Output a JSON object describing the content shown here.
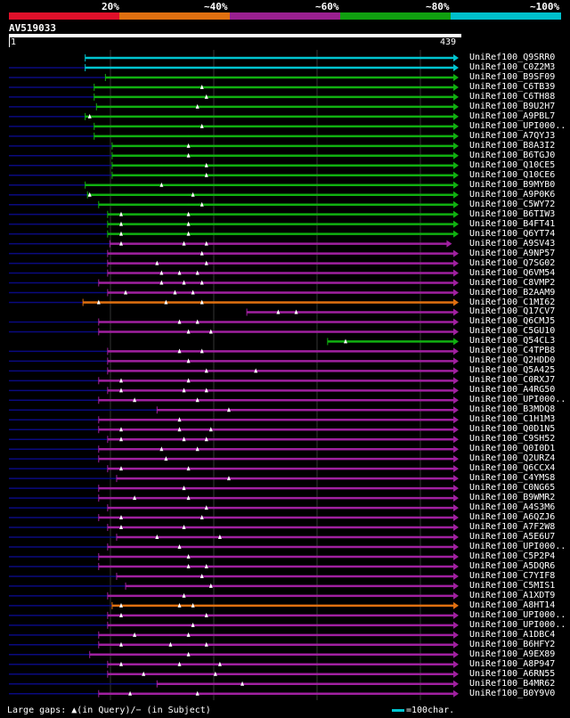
{
  "legend": {
    "labels": [
      "20%",
      "~40%",
      "~60%",
      "~80%",
      "~100%"
    ],
    "colors": [
      "#e0102a",
      "#e07010",
      "#9a2090",
      "#10a010",
      "#00c0cc"
    ]
  },
  "query": {
    "name": "AV519033",
    "start": "1",
    "end": "439"
  },
  "colors": {
    "cyan": "#00c4d0",
    "green": "#10b010",
    "purple": "#a020a0",
    "orange": "#e07010",
    "navy": "#0a0a80",
    "grid": "#333333",
    "marker": "#ffffff"
  },
  "hits": [
    {
      "name": "UniRef100_Q9SRR0",
      "color": "cyan",
      "start": 0.17,
      "end": 1.0,
      "leftExt": false,
      "markers": []
    },
    {
      "name": "UniRef100_C0Z2M3",
      "color": "cyan",
      "start": 0.17,
      "end": 1.0,
      "leftExt": true,
      "markers": []
    },
    {
      "name": "UniRef100_B9SF09",
      "color": "green",
      "start": 0.215,
      "end": 1.0,
      "leftExt": true,
      "markers": []
    },
    {
      "name": "UniRef100_C6TB39",
      "color": "green",
      "start": 0.19,
      "end": 1.0,
      "leftExt": true,
      "markers": [
        0.43
      ]
    },
    {
      "name": "UniRef100_C6TH88",
      "color": "green",
      "start": 0.19,
      "end": 1.0,
      "leftExt": true,
      "markers": [
        0.44
      ]
    },
    {
      "name": "UniRef100_B9U2H7",
      "color": "green",
      "start": 0.195,
      "end": 1.0,
      "leftExt": true,
      "markers": [
        0.42
      ]
    },
    {
      "name": "UniRef100_A9PBL7",
      "color": "green",
      "start": 0.17,
      "end": 1.0,
      "leftExt": true,
      "markers": [
        0.18
      ]
    },
    {
      "name": "UniRef100_UPI000..",
      "color": "green",
      "start": 0.19,
      "end": 1.0,
      "leftExt": true,
      "markers": [
        0.43
      ]
    },
    {
      "name": "UniRef100_A7QYJ3",
      "color": "green",
      "start": 0.19,
      "end": 1.0,
      "leftExt": true,
      "markers": []
    },
    {
      "name": "UniRef100_B8A3I2",
      "color": "green",
      "start": 0.23,
      "end": 1.0,
      "leftExt": true,
      "markers": [
        0.4
      ]
    },
    {
      "name": "UniRef100_B6TGJ0",
      "color": "green",
      "start": 0.23,
      "end": 1.0,
      "leftExt": true,
      "markers": [
        0.4
      ]
    },
    {
      "name": "UniRef100_Q10CE5",
      "color": "green",
      "start": 0.23,
      "end": 1.0,
      "leftExt": true,
      "markers": [
        0.44
      ]
    },
    {
      "name": "UniRef100_Q10CE6",
      "color": "green",
      "start": 0.23,
      "end": 1.0,
      "leftExt": true,
      "markers": [
        0.44
      ]
    },
    {
      "name": "UniRef100_B9MYB0",
      "color": "green",
      "start": 0.17,
      "end": 1.0,
      "leftExt": true,
      "markers": [
        0.34
      ]
    },
    {
      "name": "UniRef100_A9P0K6",
      "color": "green",
      "start": 0.175,
      "end": 1.0,
      "leftExt": true,
      "markers": [
        0.18,
        0.41
      ]
    },
    {
      "name": "UniRef100_C5WY72",
      "color": "green",
      "start": 0.2,
      "end": 1.0,
      "leftExt": true,
      "markers": [
        0.43
      ]
    },
    {
      "name": "UniRef100_B6TIW3",
      "color": "green",
      "start": 0.22,
      "end": 1.0,
      "leftExt": true,
      "markers": [
        0.25,
        0.4
      ]
    },
    {
      "name": "UniRef100_B4FT41",
      "color": "green",
      "start": 0.22,
      "end": 1.0,
      "leftExt": true,
      "markers": [
        0.25,
        0.4
      ]
    },
    {
      "name": "UniRef100_Q6YT74",
      "color": "green",
      "start": 0.22,
      "end": 1.0,
      "leftExt": true,
      "markers": [
        0.25,
        0.4
      ]
    },
    {
      "name": "UniRef100_A9SV43",
      "color": "purple",
      "start": 0.225,
      "end": 0.985,
      "leftExt": true,
      "markers": [
        0.25,
        0.39,
        0.44
      ]
    },
    {
      "name": "UniRef100_A9NP57",
      "color": "purple",
      "start": 0.22,
      "end": 1.0,
      "leftExt": true,
      "markers": [
        0.43
      ]
    },
    {
      "name": "UniRef100_Q7SG02",
      "color": "purple",
      "start": 0.22,
      "end": 1.0,
      "leftExt": true,
      "markers": [
        0.33,
        0.44
      ]
    },
    {
      "name": "UniRef100_Q6VM54",
      "color": "purple",
      "start": 0.22,
      "end": 1.0,
      "leftExt": true,
      "markers": [
        0.34,
        0.38,
        0.42
      ]
    },
    {
      "name": "UniRef100_C8VMP2",
      "color": "purple",
      "start": 0.2,
      "end": 1.0,
      "leftExt": true,
      "markers": [
        0.34,
        0.39,
        0.43
      ]
    },
    {
      "name": "UniRef100_B2AAM9",
      "color": "purple",
      "start": 0.22,
      "end": 1.0,
      "leftExt": true,
      "markers": [
        0.26,
        0.37,
        0.41
      ]
    },
    {
      "name": "UniRef100_C1MI62",
      "color": "orange",
      "start": 0.165,
      "end": 1.0,
      "leftExt": true,
      "markers": [
        0.2,
        0.35,
        0.43
      ]
    },
    {
      "name": "UniRef100_Q17CV7",
      "color": "purple",
      "start": 0.53,
      "end": 1.0,
      "leftExt": false,
      "markers": [
        0.6,
        0.64
      ]
    },
    {
      "name": "UniRef100_Q6CMJ5",
      "color": "purple",
      "start": 0.2,
      "end": 1.0,
      "leftExt": true,
      "markers": [
        0.38,
        0.42
      ]
    },
    {
      "name": "UniRef100_C5GU10",
      "color": "purple",
      "start": 0.2,
      "end": 1.0,
      "leftExt": true,
      "markers": [
        0.4,
        0.45
      ]
    },
    {
      "name": "UniRef100_Q54CL3",
      "color": "green",
      "start": 0.71,
      "end": 1.0,
      "leftExt": false,
      "markers": [
        0.75
      ]
    },
    {
      "name": "UniRef100_C4TPB8",
      "color": "purple",
      "start": 0.22,
      "end": 1.0,
      "leftExt": true,
      "markers": [
        0.38,
        0.43
      ]
    },
    {
      "name": "UniRef100_Q2HDD0",
      "color": "purple",
      "start": 0.22,
      "end": 1.0,
      "leftExt": true,
      "markers": [
        0.4
      ]
    },
    {
      "name": "UniRef100_Q5A425",
      "color": "purple",
      "start": 0.22,
      "end": 1.0,
      "leftExt": true,
      "markers": [
        0.44,
        0.55
      ]
    },
    {
      "name": "UniRef100_C0RXJ7",
      "color": "purple",
      "start": 0.2,
      "end": 1.0,
      "leftExt": true,
      "markers": [
        0.25,
        0.4
      ]
    },
    {
      "name": "UniRef100_A4RG50",
      "color": "purple",
      "start": 0.22,
      "end": 1.0,
      "leftExt": true,
      "markers": [
        0.25,
        0.39,
        0.44
      ]
    },
    {
      "name": "UniRef100_UPI000..",
      "color": "purple",
      "start": 0.2,
      "end": 1.0,
      "leftExt": true,
      "markers": [
        0.28,
        0.42
      ]
    },
    {
      "name": "UniRef100_B3MDQ8",
      "color": "purple",
      "start": 0.33,
      "end": 1.0,
      "leftExt": true,
      "markers": [
        0.49
      ]
    },
    {
      "name": "UniRef100_C1H1M3",
      "color": "purple",
      "start": 0.2,
      "end": 1.0,
      "leftExt": true,
      "markers": [
        0.38
      ]
    },
    {
      "name": "UniRef100_Q0D1N5",
      "color": "purple",
      "start": 0.2,
      "end": 1.0,
      "leftExt": true,
      "markers": [
        0.25,
        0.38,
        0.45
      ]
    },
    {
      "name": "UniRef100_C9SH52",
      "color": "purple",
      "start": 0.22,
      "end": 1.0,
      "leftExt": true,
      "markers": [
        0.25,
        0.39,
        0.44
      ]
    },
    {
      "name": "UniRef100_Q0I0D1",
      "color": "purple",
      "start": 0.2,
      "end": 1.0,
      "leftExt": true,
      "markers": [
        0.34,
        0.42
      ]
    },
    {
      "name": "UniRef100_Q2URZ4",
      "color": "purple",
      "start": 0.2,
      "end": 1.0,
      "leftExt": true,
      "markers": [
        0.35
      ]
    },
    {
      "name": "UniRef100_Q6CCX4",
      "color": "purple",
      "start": 0.22,
      "end": 1.0,
      "leftExt": true,
      "markers": [
        0.25,
        0.4
      ]
    },
    {
      "name": "UniRef100_C4YMS8",
      "color": "purple",
      "start": 0.24,
      "end": 1.0,
      "leftExt": true,
      "markers": [
        0.49
      ]
    },
    {
      "name": "UniRef100_C0NG65",
      "color": "purple",
      "start": 0.2,
      "end": 1.0,
      "leftExt": true,
      "markers": [
        0.39
      ]
    },
    {
      "name": "UniRef100_B9WMR2",
      "color": "purple",
      "start": 0.2,
      "end": 1.0,
      "leftExt": true,
      "markers": [
        0.28,
        0.4
      ]
    },
    {
      "name": "UniRef100_A4S3M6",
      "color": "purple",
      "start": 0.22,
      "end": 1.0,
      "leftExt": true,
      "markers": [
        0.44
      ]
    },
    {
      "name": "UniRef100_A6QZJ6",
      "color": "purple",
      "start": 0.2,
      "end": 1.0,
      "leftExt": true,
      "markers": [
        0.25,
        0.43
      ]
    },
    {
      "name": "UniRef100_A7F2W8",
      "color": "purple",
      "start": 0.22,
      "end": 1.0,
      "leftExt": true,
      "markers": [
        0.25,
        0.39
      ]
    },
    {
      "name": "UniRef100_A5E6U7",
      "color": "purple",
      "start": 0.24,
      "end": 1.0,
      "leftExt": true,
      "markers": [
        0.33,
        0.47
      ]
    },
    {
      "name": "UniRef100_UPI000..",
      "color": "purple",
      "start": 0.22,
      "end": 1.0,
      "leftExt": true,
      "markers": [
        0.38
      ]
    },
    {
      "name": "UniRef100_C5P2P4",
      "color": "purple",
      "start": 0.2,
      "end": 1.0,
      "leftExt": true,
      "markers": [
        0.4
      ]
    },
    {
      "name": "UniRef100_A5DQR6",
      "color": "purple",
      "start": 0.2,
      "end": 1.0,
      "leftExt": true,
      "markers": [
        0.4,
        0.44
      ]
    },
    {
      "name": "UniRef100_C7YIF8",
      "color": "purple",
      "start": 0.24,
      "end": 1.0,
      "leftExt": true,
      "markers": [
        0.43
      ]
    },
    {
      "name": "UniRef100_C5MIS1",
      "color": "purple",
      "start": 0.26,
      "end": 1.0,
      "leftExt": true,
      "markers": [
        0.45
      ]
    },
    {
      "name": "UniRef100_A1XDT9",
      "color": "purple",
      "start": 0.22,
      "end": 1.0,
      "leftExt": true,
      "markers": [
        0.39
      ]
    },
    {
      "name": "UniRef100_A8HT14",
      "color": "orange",
      "start": 0.23,
      "end": 1.0,
      "leftExt": true,
      "markers": [
        0.25,
        0.38,
        0.41
      ]
    },
    {
      "name": "UniRef100_UPI000..",
      "color": "purple",
      "start": 0.22,
      "end": 1.0,
      "leftExt": true,
      "markers": [
        0.25,
        0.44
      ]
    },
    {
      "name": "UniRef100_UPI000..",
      "color": "purple",
      "start": 0.22,
      "end": 1.0,
      "leftExt": true,
      "markers": [
        0.41
      ]
    },
    {
      "name": "UniRef100_A1DBC4",
      "color": "purple",
      "start": 0.2,
      "end": 1.0,
      "leftExt": true,
      "markers": [
        0.28,
        0.4
      ]
    },
    {
      "name": "UniRef100_B6HFY2",
      "color": "purple",
      "start": 0.2,
      "end": 1.0,
      "leftExt": true,
      "markers": [
        0.25,
        0.36,
        0.44
      ]
    },
    {
      "name": "UniRef100_A9EX89",
      "color": "purple",
      "start": 0.18,
      "end": 1.0,
      "leftExt": true,
      "markers": [
        0.4
      ]
    },
    {
      "name": "UniRef100_A8P947",
      "color": "purple",
      "start": 0.22,
      "end": 1.0,
      "leftExt": true,
      "markers": [
        0.25,
        0.38,
        0.47
      ]
    },
    {
      "name": "UniRef100_A6RN55",
      "color": "purple",
      "start": 0.22,
      "end": 1.0,
      "leftExt": true,
      "markers": [
        0.3,
        0.46
      ]
    },
    {
      "name": "UniRef100_B4MR62",
      "color": "purple",
      "start": 0.33,
      "end": 1.0,
      "leftExt": true,
      "markers": [
        0.52
      ]
    },
    {
      "name": "UniRef100_B0Y9V0",
      "color": "purple",
      "start": 0.2,
      "end": 1.0,
      "leftExt": true,
      "markers": [
        0.27,
        0.42
      ]
    }
  ],
  "footer": {
    "gaps_text": "Large gaps: ▲(in Query)/− (in Subject)",
    "scale_text": "=100char."
  }
}
